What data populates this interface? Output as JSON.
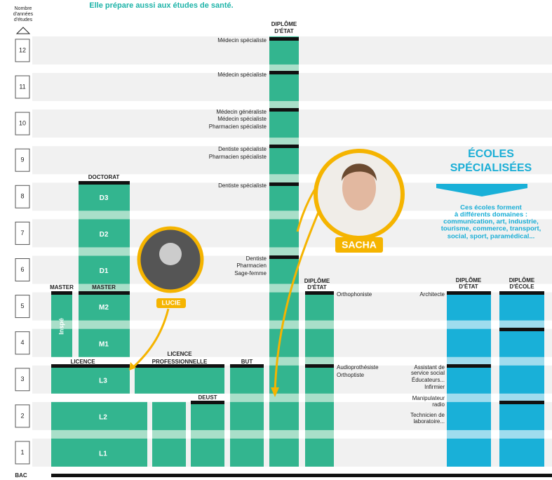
{
  "header": {
    "subtitle": "Elle prépare aussi aux études de santé.",
    "axis_label": [
      "Nombre",
      "d'années",
      "d'études"
    ]
  },
  "years": [
    "1",
    "2",
    "3",
    "4",
    "5",
    "6",
    "7",
    "8",
    "9",
    "10",
    "11",
    "12"
  ],
  "bac": "BAC",
  "doctorat": {
    "title": "DOCTORAT",
    "levels": [
      "D1",
      "D2",
      "D3"
    ]
  },
  "master": {
    "title": "MASTER",
    "levels": [
      "M1",
      "M2"
    ]
  },
  "inspe": {
    "title": "MASTER",
    "label": "Inspé"
  },
  "licence": {
    "title": "LICENCE",
    "levels": [
      "L1",
      "L2",
      "L3"
    ]
  },
  "licence_pro": {
    "title": [
      "LICENCE",
      "PROFESSIONNELLE"
    ]
  },
  "deust": {
    "title": "DEUST"
  },
  "but": {
    "title": "BUT"
  },
  "sante": {
    "title": [
      "DIPLÔME",
      "D'ÉTAT"
    ],
    "outcomes": [
      [
        "Médecin spécialiste"
      ],
      [
        "Médecin spécialiste"
      ],
      [
        "Médecin généraliste",
        "Médecin spécialiste",
        "Pharmacien spécialiste"
      ],
      [
        "Dentiste spécialiste",
        "Pharmacien spécialiste"
      ],
      [
        "Dentiste spécialiste"
      ],
      [
        "Dentiste",
        "Pharmacien",
        "Sage-femme"
      ]
    ]
  },
  "paramedical": {
    "title": [
      "DIPLÔME",
      "D'ÉTAT"
    ],
    "outcomes": [
      [
        "Orthophoniste"
      ],
      [
        "Audioprothésiste",
        "Orthoptiste"
      ]
    ]
  },
  "ecoles": {
    "title": [
      "ÉCOLES",
      "SPÉCIALISÉES"
    ],
    "description": [
      "Ces écoles forment",
      "à différents domaines :",
      "communication, art, industrie,",
      "tourisme, commerce, transport,",
      "social, sport, paramédical..."
    ],
    "diplome_etat": [
      "DIPLÔME",
      "D'ÉTAT"
    ],
    "diplome_ecole": [
      "DIPLÔME",
      "D'ÉCOLE"
    ],
    "outcomes": [
      [
        "Architecte"
      ],
      [
        "Assistant de",
        "service social",
        "Éducateurs...",
        "Infirmier",
        "Manipulateur",
        "radio",
        "Technicien de",
        "laboratoire..."
      ]
    ]
  },
  "people": {
    "lucie": "LUCIE",
    "sacha": "SACHA"
  }
}
